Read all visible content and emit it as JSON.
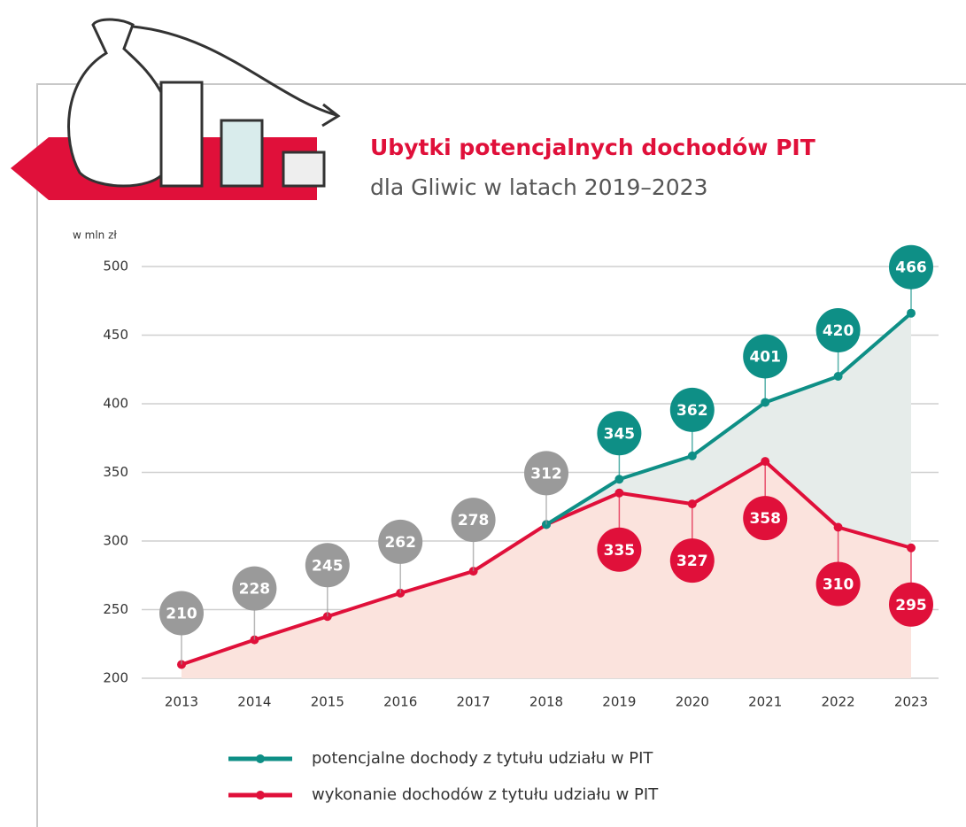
{
  "chart_data": {
    "type": "line",
    "title": "Ubytki potencjalnych dochodów PIT",
    "subtitle": "dla Gliwic w latach 2019–2023",
    "y_label": "w mln zł",
    "categories": [
      "2013",
      "2014",
      "2015",
      "2016",
      "2017",
      "2018",
      "2019",
      "2020",
      "2021",
      "2022",
      "2023"
    ],
    "series": [
      {
        "name": "potencjalne dochody z tytułu udziału w PIT",
        "color": "#0e8f86",
        "values": [
          null,
          null,
          null,
          null,
          null,
          312,
          345,
          362,
          401,
          420,
          466
        ]
      },
      {
        "name": "wykonanie dochodów z tytułu udziału w PIT",
        "color": "#e0103a",
        "values": [
          210,
          228,
          245,
          262,
          278,
          312,
          335,
          327,
          358,
          310,
          295
        ]
      }
    ],
    "shared_label_color": "#9a9a9a",
    "ylim": [
      200,
      500
    ],
    "yticks": [
      200,
      250,
      300,
      350,
      400,
      450,
      500
    ],
    "grid": true
  }
}
